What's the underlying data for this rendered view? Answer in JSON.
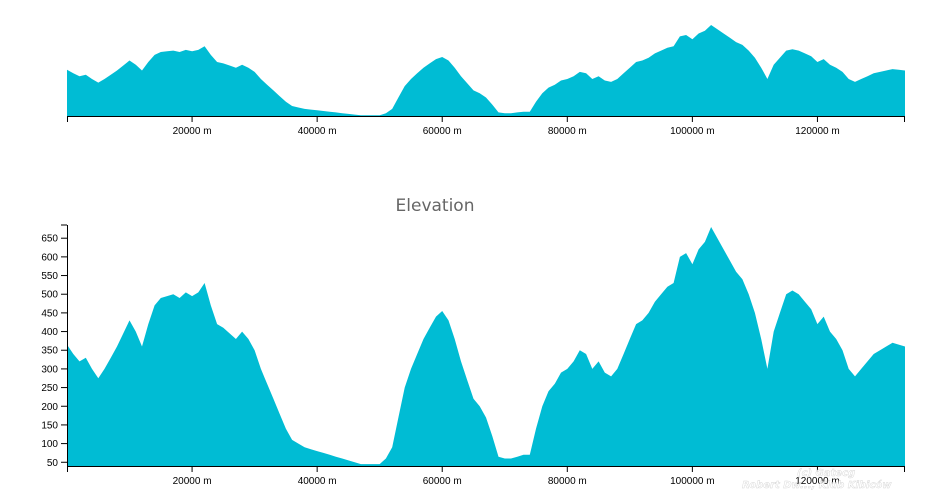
{
  "colors": {
    "area": "#00bcd4",
    "axis": "#000000",
    "title": "#666666"
  },
  "chart_data": [
    {
      "type": "area",
      "role": "overview",
      "title": "",
      "xlabel": "",
      "ylabel": "",
      "xlim": [
        0,
        134000
      ],
      "ylim": [
        40,
        680
      ],
      "grid": false,
      "x_ticks": [
        20000,
        40000,
        60000,
        80000,
        100000,
        120000
      ],
      "x_tick_labels": [
        "20000 m",
        "40000 m",
        "60000 m",
        "80000 m",
        "100000 m",
        "120000 m"
      ],
      "series": [
        {
          "x": [
            0,
            1000,
            2000,
            3000,
            4000,
            5000,
            6000,
            7000,
            8000,
            9000,
            10000,
            11000,
            12000,
            13000,
            14000,
            15000,
            16000,
            17000,
            18000,
            19000,
            20000,
            21000,
            22000,
            23000,
            24000,
            25000,
            26000,
            27000,
            28000,
            29000,
            30000,
            31000,
            32000,
            33000,
            34000,
            35000,
            36000,
            37000,
            38000,
            39000,
            40000,
            41000,
            42000,
            43000,
            44000,
            45000,
            46000,
            47000,
            48000,
            49000,
            50000,
            51000,
            52000,
            53000,
            54000,
            55000,
            56000,
            57000,
            58000,
            59000,
            60000,
            61000,
            62000,
            63000,
            64000,
            65000,
            66000,
            67000,
            68000,
            69000,
            70000,
            71000,
            72000,
            73000,
            74000,
            75000,
            76000,
            77000,
            78000,
            79000,
            80000,
            81000,
            82000,
            83000,
            84000,
            85000,
            86000,
            87000,
            88000,
            89000,
            90000,
            91000,
            92000,
            93000,
            94000,
            95000,
            96000,
            97000,
            98000,
            99000,
            100000,
            101000,
            102000,
            103000,
            104000,
            105000,
            106000,
            107000,
            108000,
            109000,
            110000,
            111000,
            112000,
            113000,
            114000,
            115000,
            116000,
            117000,
            118000,
            119000,
            120000,
            121000,
            122000,
            123000,
            124000,
            125000,
            126000,
            127000,
            128000,
            129000,
            130000,
            131000,
            132000,
            133000,
            134000
          ],
          "values": [
            365,
            340,
            320,
            330,
            300,
            275,
            300,
            330,
            360,
            395,
            430,
            400,
            360,
            420,
            470,
            490,
            495,
            500,
            490,
            505,
            495,
            505,
            530,
            470,
            420,
            410,
            395,
            380,
            400,
            380,
            350,
            300,
            260,
            220,
            180,
            140,
            110,
            100,
            90,
            85,
            80,
            75,
            70,
            65,
            60,
            55,
            50,
            45,
            45,
            45,
            45,
            60,
            90,
            170,
            250,
            300,
            340,
            380,
            410,
            440,
            455,
            430,
            380,
            320,
            270,
            220,
            200,
            170,
            120,
            65,
            60,
            60,
            65,
            70,
            70,
            140,
            200,
            240,
            260,
            290,
            300,
            320,
            350,
            340,
            300,
            320,
            290,
            280,
            300,
            340,
            380,
            420,
            430,
            450,
            480,
            500,
            520,
            530,
            600,
            610,
            580,
            620,
            640,
            680,
            650,
            620,
            590,
            560,
            540,
            500,
            450,
            380,
            300,
            400,
            450,
            500,
            510,
            500,
            480,
            460,
            420,
            440,
            400,
            380,
            350,
            300,
            280,
            300,
            320,
            340,
            350,
            360,
            370,
            365,
            360
          ]
        }
      ]
    },
    {
      "type": "area",
      "role": "main",
      "title": "Elevation",
      "xlabel": "",
      "ylabel": "",
      "xlim": [
        0,
        134000
      ],
      "ylim": [
        40,
        680
      ],
      "grid": false,
      "x_ticks": [
        20000,
        40000,
        60000,
        80000,
        100000,
        120000
      ],
      "x_tick_labels": [
        "20000 m",
        "40000 m",
        "60000 m",
        "80000 m",
        "100000 m",
        "120000 m"
      ],
      "y_ticks": [
        50,
        100,
        150,
        200,
        250,
        300,
        350,
        400,
        450,
        500,
        550,
        600,
        650
      ],
      "y_tick_labels": [
        "50",
        "100",
        "150",
        "200",
        "250",
        "300",
        "350",
        "400",
        "450",
        "500",
        "550",
        "600",
        "650"
      ],
      "series": [
        {
          "x": [
            0,
            1000,
            2000,
            3000,
            4000,
            5000,
            6000,
            7000,
            8000,
            9000,
            10000,
            11000,
            12000,
            13000,
            14000,
            15000,
            16000,
            17000,
            18000,
            19000,
            20000,
            21000,
            22000,
            23000,
            24000,
            25000,
            26000,
            27000,
            28000,
            29000,
            30000,
            31000,
            32000,
            33000,
            34000,
            35000,
            36000,
            37000,
            38000,
            39000,
            40000,
            41000,
            42000,
            43000,
            44000,
            45000,
            46000,
            47000,
            48000,
            49000,
            50000,
            51000,
            52000,
            53000,
            54000,
            55000,
            56000,
            57000,
            58000,
            59000,
            60000,
            61000,
            62000,
            63000,
            64000,
            65000,
            66000,
            67000,
            68000,
            69000,
            70000,
            71000,
            72000,
            73000,
            74000,
            75000,
            76000,
            77000,
            78000,
            79000,
            80000,
            81000,
            82000,
            83000,
            84000,
            85000,
            86000,
            87000,
            88000,
            89000,
            90000,
            91000,
            92000,
            93000,
            94000,
            95000,
            96000,
            97000,
            98000,
            99000,
            100000,
            101000,
            102000,
            103000,
            104000,
            105000,
            106000,
            107000,
            108000,
            109000,
            110000,
            111000,
            112000,
            113000,
            114000,
            115000,
            116000,
            117000,
            118000,
            119000,
            120000,
            121000,
            122000,
            123000,
            124000,
            125000,
            126000,
            127000,
            128000,
            129000,
            130000,
            131000,
            132000,
            133000,
            134000
          ],
          "values": [
            365,
            340,
            320,
            330,
            300,
            275,
            300,
            330,
            360,
            395,
            430,
            400,
            360,
            420,
            470,
            490,
            495,
            500,
            490,
            505,
            495,
            505,
            530,
            470,
            420,
            410,
            395,
            380,
            400,
            380,
            350,
            300,
            260,
            220,
            180,
            140,
            110,
            100,
            90,
            85,
            80,
            75,
            70,
            65,
            60,
            55,
            50,
            45,
            45,
            45,
            45,
            60,
            90,
            170,
            250,
            300,
            340,
            380,
            410,
            440,
            455,
            430,
            380,
            320,
            270,
            220,
            200,
            170,
            120,
            65,
            60,
            60,
            65,
            70,
            70,
            140,
            200,
            240,
            260,
            290,
            300,
            320,
            350,
            340,
            300,
            320,
            290,
            280,
            300,
            340,
            380,
            420,
            430,
            450,
            480,
            500,
            520,
            530,
            600,
            610,
            580,
            620,
            640,
            680,
            650,
            620,
            590,
            560,
            540,
            500,
            450,
            380,
            300,
            400,
            450,
            500,
            510,
            500,
            480,
            460,
            420,
            440,
            400,
            380,
            350,
            300,
            280,
            300,
            320,
            340,
            350,
            360,
            370,
            365,
            360
          ]
        }
      ]
    }
  ],
  "watermark": {
    "line1": "(c) Gatecg",
    "line2": "Robert Dw..., Klub Kibiców"
  }
}
